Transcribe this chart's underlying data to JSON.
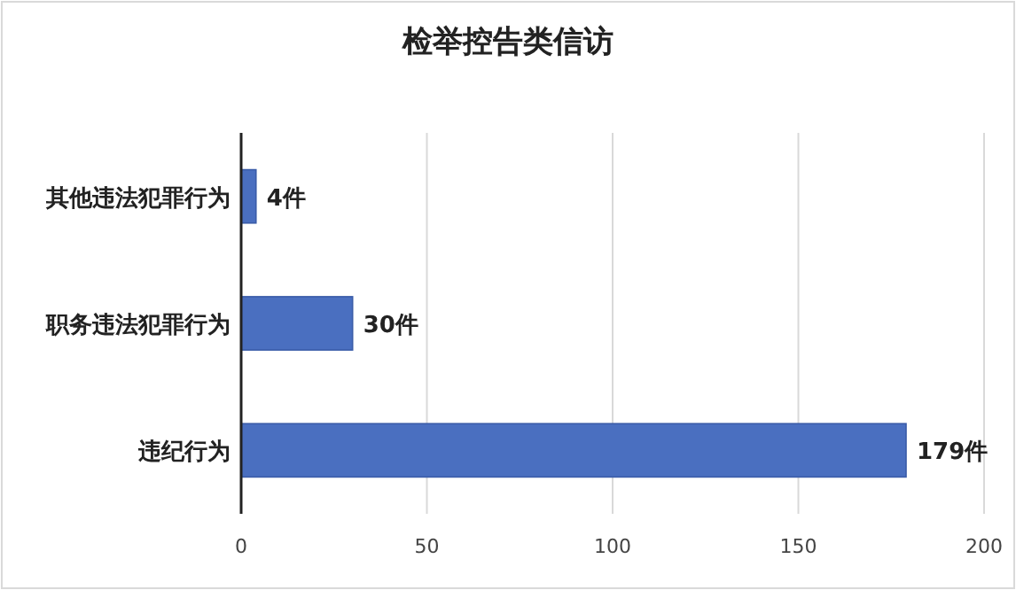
{
  "chart_data": {
    "type": "bar",
    "orientation": "horizontal",
    "title": "检举控告类信访",
    "categories": [
      "其他违法犯罪行为",
      "职务违法犯罪行为",
      "违纪行为"
    ],
    "values": [
      4,
      30,
      179
    ],
    "value_labels": [
      "4件",
      "30件",
      "179件"
    ],
    "color": "#4a6fc0",
    "xlim": [
      0,
      200
    ],
    "xticks": [
      0,
      50,
      100,
      150,
      200
    ],
    "grid": "x"
  }
}
